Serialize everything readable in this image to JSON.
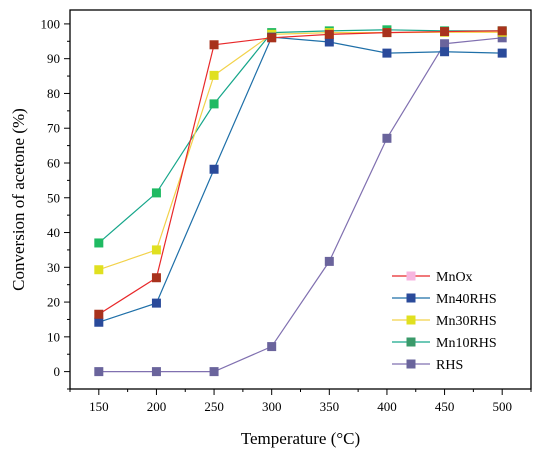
{
  "chart_data": {
    "type": "line",
    "xlabel": "Temperature (°C)",
    "ylabel": "Conversion of acetone (%)",
    "x": [
      150,
      200,
      250,
      300,
      350,
      400,
      450,
      500
    ],
    "xlim": [
      125,
      525
    ],
    "ylim": [
      -5,
      104
    ],
    "x_ticks": [
      "150",
      "200",
      "250",
      "300",
      "350",
      "400",
      "450",
      "500"
    ],
    "y_ticks": [
      "0",
      "10",
      "20",
      "30",
      "40",
      "50",
      "60",
      "70",
      "80",
      "90",
      "100"
    ],
    "x_tick_values": [
      150,
      200,
      250,
      300,
      350,
      400,
      450,
      500
    ],
    "y_tick_values": [
      0,
      10,
      20,
      30,
      40,
      50,
      60,
      70,
      80,
      90,
      100
    ],
    "legend_position": "bottom-right",
    "grid": false,
    "series": [
      {
        "name": "MnOx",
        "line_color": "#e8282a",
        "marker_color": "#a8321c",
        "legend_marker_color": "#f7b6e0",
        "values": [
          16.5,
          27,
          94,
          96,
          97,
          97.5,
          97.8,
          98
        ]
      },
      {
        "name": "Mn40RHS",
        "line_color": "#1e6fa8",
        "marker_color": "#2a4a9a",
        "legend_marker_color": "#2a4a9a",
        "values": [
          14.2,
          19.7,
          58.2,
          96.2,
          94.8,
          91.6,
          92,
          91.6
        ]
      },
      {
        "name": "Mn30RHS",
        "line_color": "#f2d24a",
        "marker_color": "#e0e020",
        "legend_marker_color": "#e0e020",
        "values": [
          29.3,
          35,
          85.2,
          97,
          97.5,
          97.5,
          97.6,
          97.6
        ]
      },
      {
        "name": "Mn10RHS",
        "line_color": "#16a68a",
        "marker_color": "#1fba62",
        "legend_marker_color": "#3a9a6a",
        "values": [
          37,
          51.4,
          77,
          97.5,
          98,
          98.3,
          98,
          98
        ]
      },
      {
        "name": "RHS",
        "line_color": "#8070b0",
        "marker_color": "#6a649c",
        "legend_marker_color": "#6a649c",
        "values": [
          0,
          0,
          0,
          7.2,
          31.7,
          67.1,
          94.3,
          96
        ]
      }
    ]
  }
}
